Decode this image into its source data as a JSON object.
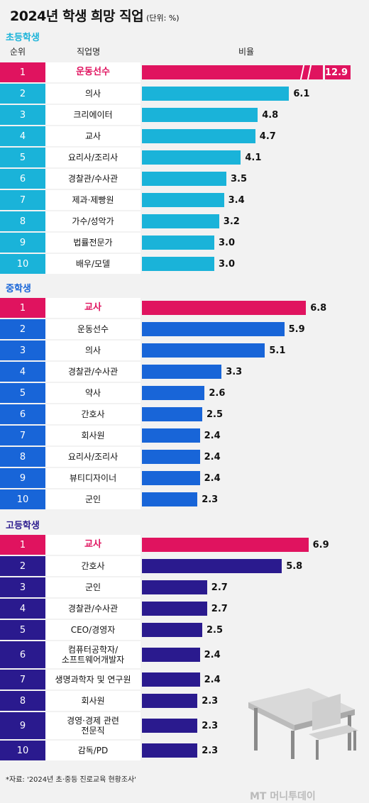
{
  "title": "2024년 학생 희망 직업",
  "unit": "(단위: %)",
  "headers": {
    "rank": "순위",
    "job": "직업명",
    "ratio": "비율"
  },
  "colors": {
    "elementary": "#1ab3d9",
    "middle": "#1865d8",
    "high": "#2a1a8e",
    "highlight": "#e0135f"
  },
  "source": "*자료: '2024년 초·중등 진로교육 현황조사'",
  "logo": "MT 머니투데이",
  "chart_data": [
    {
      "type": "bar",
      "section": "초등학생",
      "categories": [
        "운동선수",
        "의사",
        "크리에이터",
        "교사",
        "요리사/조리사",
        "경찰관/수사관",
        "제과·제빵원",
        "가수/성악가",
        "법률전문가",
        "배우/모델"
      ],
      "ranks": [
        "1",
        "2",
        "3",
        "4",
        "5",
        "6",
        "7",
        "8",
        "9",
        "10"
      ],
      "values": [
        12.9,
        6.1,
        4.8,
        4.7,
        4.1,
        3.5,
        3.4,
        3.2,
        3.0,
        3.0
      ],
      "labels": [
        "12.9",
        "6.1",
        "4.8",
        "4.7",
        "4.1",
        "3.5",
        "3.4",
        "3.2",
        "3.0",
        "3.0"
      ]
    },
    {
      "type": "bar",
      "section": "중학생",
      "categories": [
        "교사",
        "운동선수",
        "의사",
        "경찰관/수사관",
        "약사",
        "간호사",
        "회사원",
        "요리사/조리사",
        "뷰티디자이너",
        "군인"
      ],
      "ranks": [
        "1",
        "2",
        "3",
        "4",
        "5",
        "6",
        "7",
        "8",
        "9",
        "10"
      ],
      "values": [
        6.8,
        5.9,
        5.1,
        3.3,
        2.6,
        2.5,
        2.4,
        2.4,
        2.4,
        2.3
      ],
      "labels": [
        "6.8",
        "5.9",
        "5.1",
        "3.3",
        "2.6",
        "2.5",
        "2.4",
        "2.4",
        "2.4",
        "2.3"
      ]
    },
    {
      "type": "bar",
      "section": "고등학생",
      "categories": [
        "교사",
        "간호사",
        "군인",
        "경찰관/수사관",
        "CEO/경영자",
        "컴퓨터공학자/\n소프트웨어개발자",
        "생명과학자 및 연구원",
        "회사원",
        "경영·경제 관련\n전문직",
        "감독/PD"
      ],
      "ranks": [
        "1",
        "2",
        "3",
        "4",
        "5",
        "6",
        "7",
        "8",
        "9",
        "10"
      ],
      "values": [
        6.9,
        5.8,
        2.7,
        2.7,
        2.5,
        2.4,
        2.4,
        2.3,
        2.3,
        2.3
      ],
      "labels": [
        "6.9",
        "5.8",
        "2.7",
        "2.7",
        "2.5",
        "2.4",
        "2.4",
        "2.3",
        "2.3",
        "2.3"
      ]
    }
  ]
}
